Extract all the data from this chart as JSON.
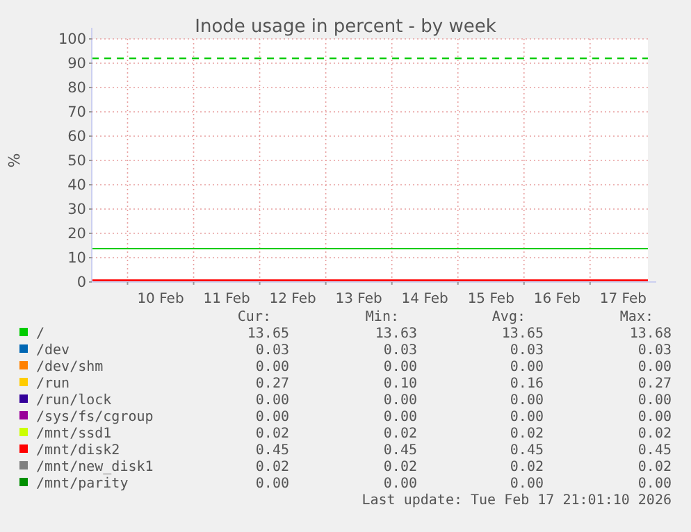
{
  "chart_data": {
    "type": "line",
    "title": "Inode usage in percent - by week",
    "ylabel": "%",
    "xlim": [
      "2026-02-09T11:00",
      "2026-02-17T21:00"
    ],
    "xticks": [
      {
        "value": "2026-02-10T00:00",
        "label": null
      },
      {
        "value": "2026-02-10T12:00",
        "label": "10 Feb"
      },
      {
        "value": "2026-02-11T00:00",
        "label": null
      },
      {
        "value": "2026-02-11T12:00",
        "label": "11 Feb"
      },
      {
        "value": "2026-02-12T00:00",
        "label": null
      },
      {
        "value": "2026-02-12T12:00",
        "label": "12 Feb"
      },
      {
        "value": "2026-02-13T00:00",
        "label": null
      },
      {
        "value": "2026-02-13T12:00",
        "label": "13 Feb"
      },
      {
        "value": "2026-02-14T00:00",
        "label": null
      },
      {
        "value": "2026-02-14T12:00",
        "label": "14 Feb"
      },
      {
        "value": "2026-02-15T00:00",
        "label": null
      },
      {
        "value": "2026-02-15T12:00",
        "label": "15 Feb"
      },
      {
        "value": "2026-02-16T00:00",
        "label": null
      },
      {
        "value": "2026-02-16T12:00",
        "label": "16 Feb"
      },
      {
        "value": "2026-02-17T00:00",
        "label": null
      },
      {
        "value": "2026-02-17T12:00",
        "label": "17 Feb"
      }
    ],
    "ylim": [
      0,
      100
    ],
    "yticks": [
      0,
      10,
      20,
      30,
      40,
      50,
      60,
      70,
      80,
      90,
      100
    ],
    "grid": true,
    "legend": "bottom",
    "x": [
      "2026-02-09T11:00",
      "2026-02-17T21:00"
    ],
    "series": [
      {
        "name": "/",
        "color": "#00cc00",
        "values": [
          13.7,
          13.7
        ]
      },
      {
        "name": "/dev",
        "color": "#0066b3",
        "values": [
          null,
          null
        ]
      },
      {
        "name": "/dev/shm",
        "color": "#ff8000",
        "values": [
          null,
          null
        ]
      },
      {
        "name": "/run",
        "color": "#ffcc00",
        "values": [
          null,
          null
        ]
      },
      {
        "name": "/run/lock",
        "color": "#330099",
        "values": [
          null,
          null
        ]
      },
      {
        "name": "/sys/fs/cgroup",
        "color": "#990099",
        "values": [
          null,
          null
        ]
      },
      {
        "name": "/mnt/ssd1",
        "color": "#ccff00",
        "values": [
          null,
          null
        ]
      },
      {
        "name": "/mnt/disk2",
        "color": "#ff0000",
        "values": [
          0.5,
          0.5
        ]
      },
      {
        "name": "/mnt/new_disk1",
        "color": "#808080",
        "values": [
          null,
          null
        ]
      },
      {
        "name": "/mnt/parity",
        "color": "#008f00",
        "values": [
          null,
          null
        ]
      }
    ],
    "ref_lines": [
      {
        "axis": "y",
        "value": 92,
        "color": "#00cc00",
        "line_style": "dashed"
      }
    ],
    "annotations": [
      "Cur:",
      "Min:",
      "Avg:",
      "Max:",
      "13.65",
      "13.63",
      "13.65",
      "13.68",
      "0.03",
      "0.03",
      "0.03",
      "0.03",
      "0.00",
      "0.00",
      "0.00",
      "0.00",
      "0.27",
      "0.10",
      "0.16",
      "0.27",
      "0.00",
      "0.00",
      "0.00",
      "0.00",
      "0.00",
      "0.00",
      "0.00",
      "0.00",
      "0.02",
      "0.02",
      "0.02",
      "0.02",
      "0.45",
      "0.45",
      "0.45",
      "0.45",
      "0.02",
      "0.02",
      "0.02",
      "0.02",
      "0.00",
      "0.00",
      "0.00",
      "0.00",
      "Last update: Tue Feb 17 21:01:10 2026"
    ]
  }
}
